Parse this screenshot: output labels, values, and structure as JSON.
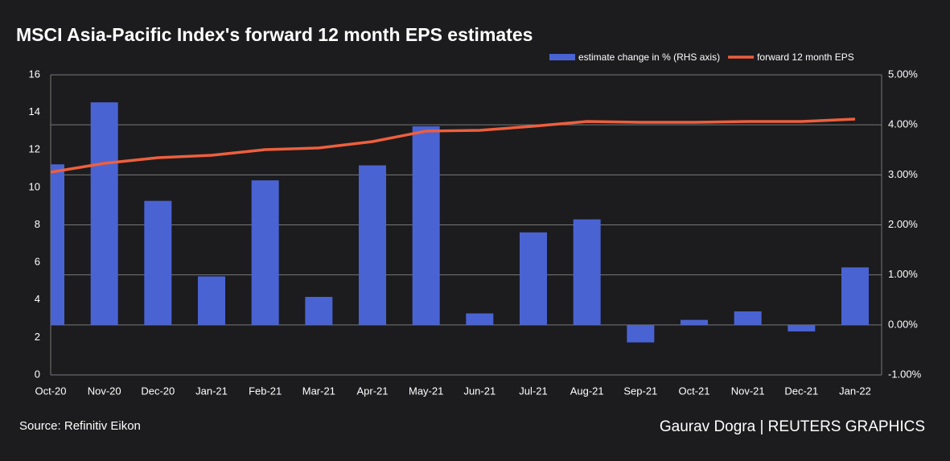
{
  "chart_data": {
    "type": "bar-line",
    "title": "MSCI Asia-Pacific Index's forward 12 month EPS estimates",
    "source": "Source: Refinitiv Eikon",
    "credit": "Gaurav Dogra | REUTERS GRAPHICS",
    "categories": [
      "Oct-20",
      "Nov-20",
      "Dec-20",
      "Jan-21",
      "Feb-21",
      "Mar-21",
      "Apr-21",
      "May-21",
      "Jun-21",
      "Jul-21",
      "Aug-21",
      "Sep-21",
      "Oct-21",
      "Nov-21",
      "Dec-21",
      "Jan-22"
    ],
    "series": [
      {
        "name": "estimate change in % (RHS axis)",
        "type": "bar",
        "axis": "y2",
        "color": "#4a63d3",
        "values": [
          3.21,
          4.45,
          2.48,
          0.97,
          2.89,
          0.56,
          3.19,
          3.97,
          0.23,
          1.85,
          2.11,
          -0.35,
          0.1,
          0.27,
          -0.13,
          1.15
        ]
      },
      {
        "name": "forward 12 month EPS",
        "type": "line",
        "color": "#ee5f3d",
        "values": [
          10.81,
          11.28,
          11.58,
          11.71,
          12.01,
          12.1,
          12.44,
          13.0,
          13.04,
          13.26,
          13.51,
          13.47,
          13.47,
          13.51,
          13.51,
          13.64
        ]
      }
    ],
    "ylim": [
      0,
      16
    ],
    "yticks": [
      0,
      2,
      4,
      6,
      8,
      10,
      12,
      14,
      16
    ],
    "y2lim": [
      -1,
      5
    ],
    "y2ticks": [
      {
        "value": -1,
        "label": "-1.00%"
      },
      {
        "value": 0,
        "label": "0.00%"
      },
      {
        "value": 1,
        "label": "1.00%"
      },
      {
        "value": 2,
        "label": "2.00%"
      },
      {
        "value": 3,
        "label": "3.00%"
      },
      {
        "value": 4,
        "label": "4.00%"
      },
      {
        "value": 5,
        "label": "5.00%"
      }
    ],
    "grid": true
  }
}
